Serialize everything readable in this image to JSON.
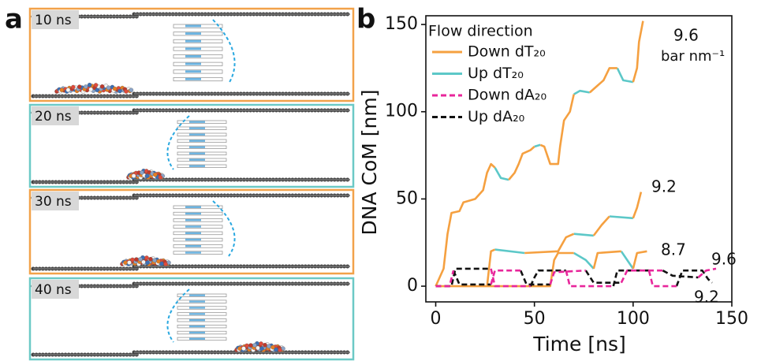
{
  "panel_a": {
    "label": "a",
    "frames": [
      {
        "label": "10 ns",
        "color": "#f2a24a"
      },
      {
        "label": "20 ns",
        "color": "#6cc9c6"
      },
      {
        "label": "30 ns",
        "color": "#f2a24a"
      },
      {
        "label": "40 ns",
        "color": "#6cc9c6"
      }
    ]
  },
  "chart_data": {
    "type": "line",
    "panel_label": "b",
    "x_label": "Time [ns]",
    "y_label": "DNA CoM  [nm]",
    "legend_title": "Flow direction",
    "annotations": [
      "9.6",
      "bar nm⁻¹",
      "9.2",
      "8.7",
      "9.6",
      "9.2"
    ],
    "xlim": [
      -5,
      150
    ],
    "xticks": [
      0,
      50,
      100,
      150
    ],
    "ylim": [
      -9,
      155
    ],
    "yticks": [
      0,
      50,
      100,
      150
    ],
    "series": [
      {
        "name": "Down dT₂₀",
        "color": "#f5a040",
        "linestyle": "solid",
        "x": [
          0,
          4,
          6,
          8,
          12,
          14,
          20,
          24,
          26,
          28,
          30,
          null,
          37,
          40,
          42,
          44,
          48,
          50,
          null,
          53,
          55,
          58,
          62,
          63,
          65,
          68,
          70,
          null,
          78,
          82,
          85,
          88,
          92,
          null,
          100,
          102,
          103,
          105,
          null,
          0,
          26,
          28,
          30,
          null,
          45,
          62,
          66,
          70,
          null,
          80,
          84,
          88,
          null,
          100,
          102,
          104,
          null,
          0,
          58,
          60,
          62,
          70,
          null,
          80,
          82,
          94,
          null,
          100,
          102,
          107
        ],
        "values": [
          0,
          10,
          30,
          42,
          43,
          48,
          50,
          55,
          65,
          70,
          68,
          null,
          61,
          65,
          70,
          76,
          78,
          80,
          null,
          81,
          80,
          70,
          70,
          80,
          95,
          100,
          110,
          null,
          111,
          115,
          118,
          125,
          125,
          null,
          117,
          125,
          140,
          152,
          null,
          0,
          0,
          20,
          21,
          null,
          19,
          20,
          28,
          30,
          null,
          29,
          35,
          40,
          null,
          39,
          45,
          54,
          null,
          0,
          0,
          15,
          19,
          19,
          null,
          10,
          19,
          20,
          null,
          10,
          19,
          20
        ]
      },
      {
        "name": "Up dT₂₀",
        "color": "#5cc8c8",
        "linestyle": "solid",
        "x": [
          30,
          33,
          37,
          null,
          50,
          53,
          null,
          70,
          73,
          78,
          null,
          92,
          95,
          100,
          null,
          30,
          45,
          null,
          70,
          80,
          null,
          88,
          100,
          null,
          70,
          76,
          80,
          null,
          94,
          97,
          100
        ],
        "values": [
          68,
          62,
          61,
          null,
          80,
          81,
          null,
          110,
          112,
          111,
          null,
          125,
          118,
          117,
          null,
          21,
          19,
          null,
          30,
          29,
          null,
          40,
          39,
          null,
          19,
          15,
          10,
          null,
          20,
          15,
          10
        ]
      },
      {
        "name": "Down dA₂₀",
        "color": "#e8269b",
        "linestyle": "dashed",
        "x": [
          0,
          7,
          9,
          null,
          28,
          30,
          43,
          null,
          58,
          60,
          76,
          null,
          94,
          97,
          115,
          null,
          133,
          137,
          142,
          null,
          28,
          30,
          48,
          null,
          66,
          68,
          90,
          null,
          108,
          110,
          122
        ],
        "values": [
          0,
          0,
          9,
          null,
          1,
          9,
          9,
          null,
          1,
          8,
          9,
          null,
          2,
          9,
          9,
          null,
          5,
          9,
          10,
          null,
          10,
          0,
          0,
          null,
          9,
          0,
          0,
          null,
          9,
          0,
          0
        ]
      },
      {
        "name": "Up dA₂₀",
        "color": "#111111",
        "linestyle": "dashed",
        "x": [
          9,
          12,
          28,
          null,
          43,
          46,
          58,
          null,
          76,
          80,
          94,
          null,
          115,
          120,
          133,
          null,
          0,
          8,
          10,
          28,
          null,
          48,
          50,
          52,
          66,
          null,
          90,
          92,
          108,
          null,
          122,
          125,
          135,
          138,
          140
        ],
        "values": [
          9,
          1,
          1,
          null,
          9,
          1,
          1,
          null,
          9,
          2,
          2,
          null,
          9,
          6,
          5,
          null,
          0,
          0,
          10,
          10,
          null,
          0,
          5,
          9,
          9,
          null,
          0,
          9,
          9,
          null,
          0,
          9,
          9,
          4,
          2
        ]
      }
    ]
  }
}
